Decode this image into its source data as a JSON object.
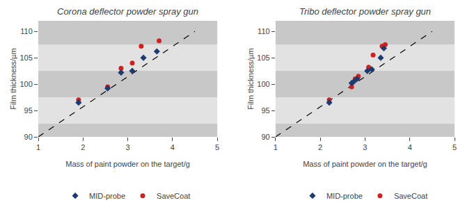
{
  "chart_data": [
    {
      "type": "scatter",
      "title": "Corona deflector powder spray gun",
      "xlabel": "Mass of paint powder on the target/g",
      "ylabel": "Film thickness/µm",
      "xlim": [
        1,
        5
      ],
      "ylim": [
        90,
        112
      ],
      "xticks": [
        1,
        2,
        3,
        4,
        5
      ],
      "yticks": [
        90,
        95,
        100,
        105,
        110
      ],
      "grid": false,
      "legend": "bottom",
      "bands": [
        {
          "ymin": 90,
          "ymax": 92.5,
          "color": "#c8c8c8"
        },
        {
          "ymin": 92.5,
          "ymax": 97.5,
          "color": "#e2e2e2"
        },
        {
          "ymin": 97.5,
          "ymax": 102.5,
          "color": "#c8c8c8"
        },
        {
          "ymin": 102.5,
          "ymax": 107.5,
          "color": "#e2e2e2"
        },
        {
          "ymin": 107.5,
          "ymax": 112,
          "color": "#c8c8c8"
        }
      ],
      "series": [
        {
          "name": "MID-probe",
          "color": "#1e3a6e",
          "marker": "diamond",
          "x": [
            1.9,
            2.55,
            2.85,
            3.1,
            3.35,
            3.65
          ],
          "values": [
            96.5,
            99.2,
            102.2,
            102.5,
            105.0,
            106.2
          ]
        },
        {
          "name": "SaveCoat",
          "color": "#cc2222",
          "marker": "circle",
          "x": [
            1.9,
            2.55,
            2.85,
            3.1,
            3.3,
            3.7
          ],
          "values": [
            97.0,
            99.5,
            103.0,
            104.0,
            107.2,
            108.2
          ]
        },
        {
          "type": "line",
          "color": "#000000",
          "line_style": "dashed",
          "x": [
            1.0,
            4.5
          ],
          "values": [
            90.0,
            110.0
          ]
        }
      ]
    },
    {
      "type": "scatter",
      "title": "Tribo deflector powder spray gun",
      "xlabel": "Mass of paint powder on the target/g",
      "ylabel": "Film thickness/µm",
      "xlim": [
        1,
        5
      ],
      "ylim": [
        90,
        112
      ],
      "xticks": [
        1,
        2,
        3,
        4,
        5
      ],
      "yticks": [
        90,
        95,
        100,
        105,
        110
      ],
      "grid": false,
      "legend": "bottom",
      "bands": [
        {
          "ymin": 90,
          "ymax": 92.5,
          "color": "#c8c8c8"
        },
        {
          "ymin": 92.5,
          "ymax": 97.5,
          "color": "#e2e2e2"
        },
        {
          "ymin": 97.5,
          "ymax": 102.5,
          "color": "#c8c8c8"
        },
        {
          "ymin": 102.5,
          "ymax": 107.5,
          "color": "#e2e2e2"
        },
        {
          "ymin": 107.5,
          "ymax": 112,
          "color": "#c8c8c8"
        }
      ],
      "series": [
        {
          "name": "MID-probe",
          "color": "#1e3a6e",
          "marker": "diamond",
          "x": [
            2.2,
            2.7,
            2.75,
            2.82,
            3.05,
            3.15,
            3.35,
            3.42
          ],
          "values": [
            96.5,
            100.2,
            100.5,
            101.0,
            102.5,
            102.8,
            105.0,
            106.8
          ]
        },
        {
          "name": "SaveCoat",
          "color": "#cc2222",
          "marker": "circle",
          "x": [
            2.2,
            2.7,
            2.78,
            2.85,
            3.08,
            3.18,
            3.38,
            3.45
          ],
          "values": [
            97.0,
            99.5,
            101.0,
            101.5,
            103.2,
            105.5,
            107.2,
            107.5
          ]
        },
        {
          "type": "line",
          "color": "#000000",
          "line_style": "dashed",
          "x": [
            1.0,
            4.5
          ],
          "values": [
            90.0,
            110.0
          ]
        }
      ]
    }
  ]
}
